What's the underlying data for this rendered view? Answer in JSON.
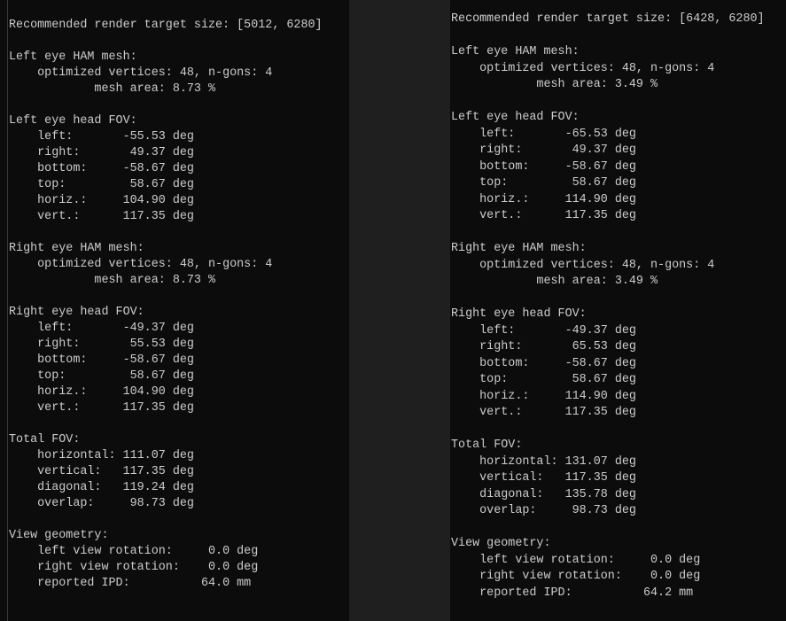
{
  "left_terminal": {
    "lines": [
      "Recommended render target size: [5012, 6280]",
      "",
      "Left eye HAM mesh:",
      "    optimized vertices: 48, n-gons: 4",
      "            mesh area: 8.73 %",
      "",
      "Left eye head FOV:",
      "    left:       -55.53 deg",
      "    right:       49.37 deg",
      "    bottom:     -58.67 deg",
      "    top:         58.67 deg",
      "    horiz.:     104.90 deg",
      "    vert.:      117.35 deg",
      "",
      "Right eye HAM mesh:",
      "    optimized vertices: 48, n-gons: 4",
      "            mesh area: 8.73 %",
      "",
      "Right eye head FOV:",
      "    left:       -49.37 deg",
      "    right:       55.53 deg",
      "    bottom:     -58.67 deg",
      "    top:         58.67 deg",
      "    horiz.:     104.90 deg",
      "    vert.:      117.35 deg",
      "",
      "Total FOV:",
      "    horizontal: 111.07 deg",
      "    vertical:   117.35 deg",
      "    diagonal:   119.24 deg",
      "    overlap:     98.73 deg",
      "",
      "View geometry:",
      "    left view rotation:     0.0 deg",
      "    right view rotation:    0.0 deg",
      "    reported IPD:          64.0 mm"
    ]
  },
  "right_terminal": {
    "lines": [
      "Recommended render target size: [6428, 6280]",
      "",
      "Left eye HAM mesh:",
      "    optimized vertices: 48, n-gons: 4",
      "            mesh area: 3.49 %",
      "",
      "Left eye head FOV:",
      "    left:       -65.53 deg",
      "    right:       49.37 deg",
      "    bottom:     -58.67 deg",
      "    top:         58.67 deg",
      "    horiz.:     114.90 deg",
      "    vert.:      117.35 deg",
      "",
      "Right eye HAM mesh:",
      "    optimized vertices: 48, n-gons: 4",
      "            mesh area: 3.49 %",
      "",
      "Right eye head FOV:",
      "    left:       -49.37 deg",
      "    right:       65.53 deg",
      "    bottom:     -58.67 deg",
      "    top:         58.67 deg",
      "    horiz.:     114.90 deg",
      "    vert.:      117.35 deg",
      "",
      "Total FOV:",
      "    horizontal: 131.07 deg",
      "    vertical:   117.35 deg",
      "    diagonal:   135.78 deg",
      "    overlap:     98.73 deg",
      "",
      "View geometry:",
      "    left view rotation:     0.0 deg",
      "    right view rotation:    0.0 deg",
      "    reported IPD:          64.2 mm"
    ]
  }
}
